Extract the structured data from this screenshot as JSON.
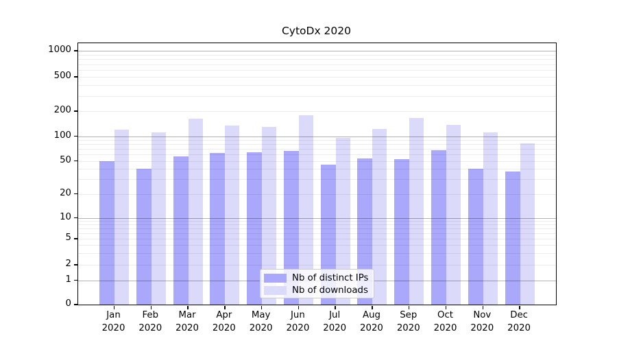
{
  "title": "CytoDx 2020",
  "chart_data": {
    "type": "bar",
    "title": "CytoDx 2020",
    "categories": [
      "Jan",
      "Feb",
      "Mar",
      "Apr",
      "May",
      "Jun",
      "Jul",
      "Aug",
      "Sep",
      "Oct",
      "Nov",
      "Dec"
    ],
    "category_year": "2020",
    "series": [
      {
        "name": "Nb of distinct IPs",
        "color": "#aaa8fa",
        "values": [
          50,
          40,
          57,
          63,
          64,
          66,
          45,
          54,
          52,
          68,
          40,
          37
        ]
      },
      {
        "name": "Nb of downloads",
        "color": "#dcdafa",
        "values": [
          120,
          110,
          162,
          133,
          129,
          180,
          95,
          123,
          164,
          136,
          111,
          82
        ]
      }
    ],
    "yticks": [
      0,
      1,
      2,
      5,
      10,
      20,
      50,
      100,
      200,
      500,
      1000
    ],
    "yscale": "symlog",
    "ylim": [
      0,
      1250
    ],
    "grid": true,
    "legend_position": "lower-center"
  }
}
